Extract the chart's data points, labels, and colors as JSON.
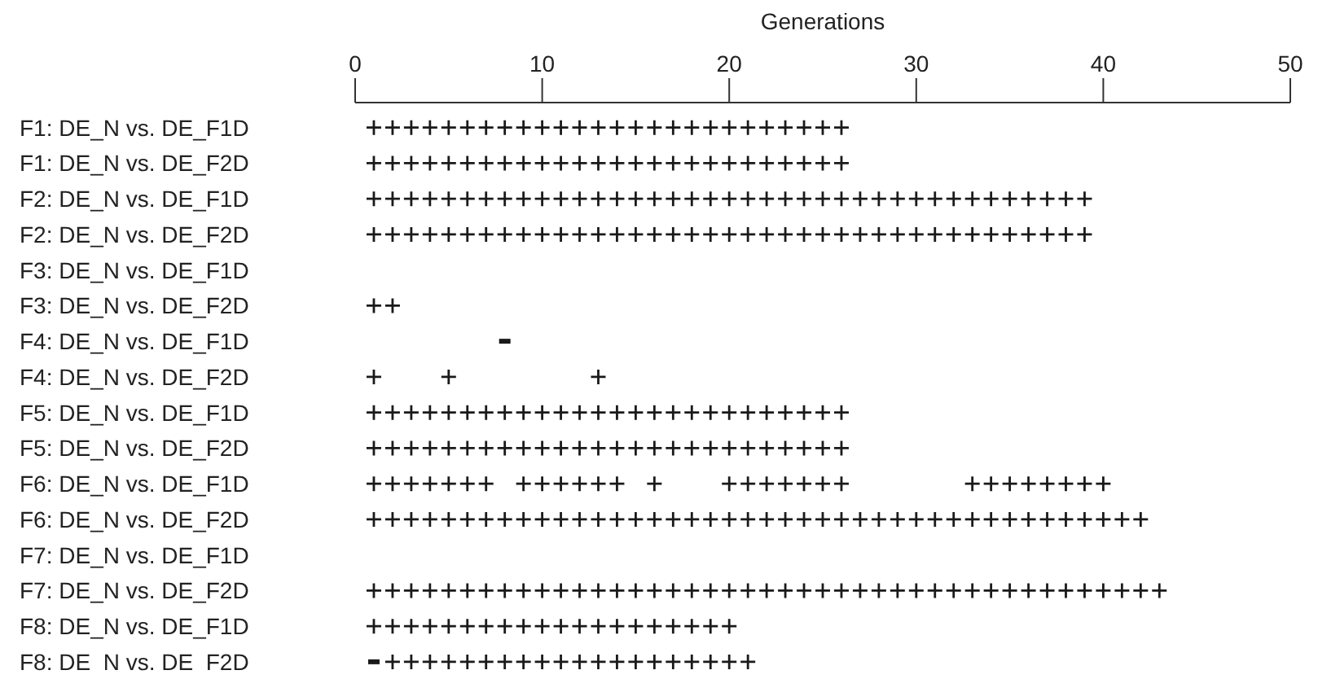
{
  "chart_data": {
    "type": "scatter",
    "orientation": "horizontal",
    "xlabel": "Generations",
    "xlim": [
      0,
      50
    ],
    "xticks": [
      0,
      10,
      20,
      30,
      40,
      50
    ],
    "categories": [
      "F1: DE_N vs. DE_F1D",
      "F1: DE_N vs. DE_F2D",
      "F2: DE_N vs. DE_F1D",
      "F2: DE_N vs. DE_F2D",
      "F3: DE_N vs. DE_F1D",
      "F3: DE_N vs. DE_F2D",
      "F4: DE_N vs. DE_F1D",
      "F4: DE_N vs. DE_F2D",
      "F5: DE_N vs. DE_F1D",
      "F5: DE_N vs. DE_F2D",
      "F6: DE_N vs. DE_F1D",
      "F6: DE_N vs. DE_F2D",
      "F7: DE_N vs. DE_F1D",
      "F7: DE_N vs. DE_F2D",
      "F8: DE_N vs. DE_F1D",
      "F8: DE_N vs. DE_F2D"
    ],
    "series": [
      {
        "marker": "cross",
        "color": "#1a1a1a",
        "values": [
          1,
          2,
          3,
          4,
          5,
          6,
          7,
          8,
          9,
          10,
          11,
          12,
          13,
          14,
          15,
          16,
          17,
          18,
          19,
          20,
          21,
          22,
          23,
          24,
          25,
          26,
          1,
          2,
          3,
          4,
          5,
          6,
          7,
          8,
          9,
          10,
          11,
          12,
          13,
          14,
          15,
          16,
          17,
          18,
          19,
          20,
          21,
          22,
          23,
          24,
          25,
          26,
          1,
          2,
          3,
          4,
          5,
          6,
          7,
          8,
          9,
          10,
          11,
          12,
          13,
          14,
          15,
          16,
          17,
          18,
          19,
          20,
          21,
          22,
          23,
          24,
          25,
          26,
          27,
          28,
          29,
          30,
          31,
          32,
          33,
          34,
          35,
          36,
          37,
          38,
          39,
          1,
          2,
          3,
          4,
          5,
          6,
          7,
          8,
          9,
          10,
          11,
          12,
          13,
          14,
          15,
          16,
          17,
          18,
          19,
          20,
          21,
          22,
          23,
          24,
          25,
          26,
          27,
          28,
          29,
          30,
          31,
          32,
          33,
          34,
          35,
          36,
          37,
          38,
          39,
          1,
          2,
          1,
          5,
          13,
          1,
          2,
          3,
          4,
          5,
          6,
          7,
          8,
          9,
          10,
          11,
          12,
          13,
          14,
          15,
          16,
          17,
          18,
          19,
          20,
          21,
          22,
          23,
          24,
          25,
          26,
          1,
          2,
          3,
          4,
          5,
          6,
          7,
          8,
          9,
          10,
          11,
          12,
          13,
          14,
          15,
          16,
          17,
          18,
          19,
          20,
          21,
          22,
          23,
          24,
          25,
          26,
          1,
          2,
          3,
          4,
          5,
          6,
          7,
          9,
          10,
          11,
          12,
          13,
          14,
          16,
          20,
          21,
          22,
          23,
          24,
          25,
          26,
          33,
          34,
          35,
          36,
          37,
          38,
          39,
          40,
          1,
          2,
          3,
          4,
          5,
          6,
          7,
          8,
          9,
          10,
          11,
          12,
          13,
          14,
          15,
          16,
          17,
          18,
          19,
          20,
          21,
          22,
          23,
          24,
          25,
          26,
          27,
          28,
          29,
          30,
          31,
          32,
          33,
          34,
          35,
          36,
          37,
          38,
          39,
          40,
          41,
          42,
          1,
          2,
          3,
          4,
          5,
          6,
          7,
          8,
          9,
          10,
          11,
          12,
          13,
          14,
          15,
          16,
          17,
          18,
          19,
          20,
          21,
          22,
          23,
          24,
          25,
          26,
          27,
          28,
          29,
          30,
          31,
          32,
          33,
          34,
          35,
          36,
          37,
          38,
          39,
          40,
          41,
          42,
          43,
          1,
          2,
          3,
          4,
          5,
          6,
          7,
          8,
          9,
          10,
          11,
          12,
          13,
          14,
          15,
          16,
          17,
          18,
          19,
          20,
          2,
          3,
          4,
          5,
          6,
          7,
          8,
          9,
          10,
          11,
          12,
          13,
          14,
          15,
          16,
          17,
          18,
          19,
          20,
          21
        ],
        "x": [
          "F1: DE_N vs. DE_F1D",
          "F1: DE_N vs. DE_F1D",
          "F1: DE_N vs. DE_F1D",
          "F1: DE_N vs. DE_F1D",
          "F1: DE_N vs. DE_F1D",
          "F1: DE_N vs. DE_F1D",
          "F1: DE_N vs. DE_F1D",
          "F1: DE_N vs. DE_F1D",
          "F1: DE_N vs. DE_F1D",
          "F1: DE_N vs. DE_F1D",
          "F1: DE_N vs. DE_F1D",
          "F1: DE_N vs. DE_F1D",
          "F1: DE_N vs. DE_F1D",
          "F1: DE_N vs. DE_F1D",
          "F1: DE_N vs. DE_F1D",
          "F1: DE_N vs. DE_F1D",
          "F1: DE_N vs. DE_F1D",
          "F1: DE_N vs. DE_F1D",
          "F1: DE_N vs. DE_F1D",
          "F1: DE_N vs. DE_F1D",
          "F1: DE_N vs. DE_F1D",
          "F1: DE_N vs. DE_F1D",
          "F1: DE_N vs. DE_F1D",
          "F1: DE_N vs. DE_F1D",
          "F1: DE_N vs. DE_F1D",
          "F1: DE_N vs. DE_F1D",
          "F1: DE_N vs. DE_F2D",
          "F1: DE_N vs. DE_F2D",
          "F1: DE_N vs. DE_F2D",
          "F1: DE_N vs. DE_F2D",
          "F1: DE_N vs. DE_F2D",
          "F1: DE_N vs. DE_F2D",
          "F1: DE_N vs. DE_F2D",
          "F1: DE_N vs. DE_F2D",
          "F1: DE_N vs. DE_F2D",
          "F1: DE_N vs. DE_F2D",
          "F1: DE_N vs. DE_F2D",
          "F1: DE_N vs. DE_F2D",
          "F1: DE_N vs. DE_F2D",
          "F1: DE_N vs. DE_F2D",
          "F1: DE_N vs. DE_F2D",
          "F1: DE_N vs. DE_F2D",
          "F1: DE_N vs. DE_F2D",
          "F1: DE_N vs. DE_F2D",
          "F1: DE_N vs. DE_F2D",
          "F1: DE_N vs. DE_F2D",
          "F1: DE_N vs. DE_F2D",
          "F1: DE_N vs. DE_F2D",
          "F1: DE_N vs. DE_F2D",
          "F1: DE_N vs. DE_F2D",
          "F1: DE_N vs. DE_F2D",
          "F1: DE_N vs. DE_F2D",
          "F2: DE_N vs. DE_F1D",
          "F2: DE_N vs. DE_F1D",
          "F2: DE_N vs. DE_F1D",
          "F2: DE_N vs. DE_F1D",
          "F2: DE_N vs. DE_F1D",
          "F2: DE_N vs. DE_F1D",
          "F2: DE_N vs. DE_F1D",
          "F2: DE_N vs. DE_F1D",
          "F2: DE_N vs. DE_F1D",
          "F2: DE_N vs. DE_F1D",
          "F2: DE_N vs. DE_F1D",
          "F2: DE_N vs. DE_F1D",
          "F2: DE_N vs. DE_F1D",
          "F2: DE_N vs. DE_F1D",
          "F2: DE_N vs. DE_F1D",
          "F2: DE_N vs. DE_F1D",
          "F2: DE_N vs. DE_F1D",
          "F2: DE_N vs. DE_F1D",
          "F2: DE_N vs. DE_F1D",
          "F2: DE_N vs. DE_F1D",
          "F2: DE_N vs. DE_F1D",
          "F2: DE_N vs. DE_F1D",
          "F2: DE_N vs. DE_F1D",
          "F2: DE_N vs. DE_F1D",
          "F2: DE_N vs. DE_F1D",
          "F2: DE_N vs. DE_F1D",
          "F2: DE_N vs. DE_F1D",
          "F2: DE_N vs. DE_F1D",
          "F2: DE_N vs. DE_F1D",
          "F2: DE_N vs. DE_F1D",
          "F2: DE_N vs. DE_F1D",
          "F2: DE_N vs. DE_F1D",
          "F2: DE_N vs. DE_F1D",
          "F2: DE_N vs. DE_F1D",
          "F2: DE_N vs. DE_F1D",
          "F2: DE_N vs. DE_F1D",
          "F2: DE_N vs. DE_F1D",
          "F2: DE_N vs. DE_F1D",
          "F2: DE_N vs. DE_F1D",
          "F2: DE_N vs. DE_F2D",
          "F2: DE_N vs. DE_F2D",
          "F2: DE_N vs. DE_F2D",
          "F2: DE_N vs. DE_F2D",
          "F2: DE_N vs. DE_F2D",
          "F2: DE_N vs. DE_F2D",
          "F2: DE_N vs. DE_F2D",
          "F2: DE_N vs. DE_F2D",
          "F2: DE_N vs. DE_F2D",
          "F2: DE_N vs. DE_F2D",
          "F2: DE_N vs. DE_F2D",
          "F2: DE_N vs. DE_F2D",
          "F2: DE_N vs. DE_F2D",
          "F2: DE_N vs. DE_F2D",
          "F2: DE_N vs. DE_F2D",
          "F2: DE_N vs. DE_F2D",
          "F2: DE_N vs. DE_F2D",
          "F2: DE_N vs. DE_F2D",
          "F2: DE_N vs. DE_F2D",
          "F2: DE_N vs. DE_F2D",
          "F2: DE_N vs. DE_F2D",
          "F2: DE_N vs. DE_F2D",
          "F2: DE_N vs. DE_F2D",
          "F2: DE_N vs. DE_F2D",
          "F2: DE_N vs. DE_F2D",
          "F2: DE_N vs. DE_F2D",
          "F2: DE_N vs. DE_F2D",
          "F2: DE_N vs. DE_F2D",
          "F2: DE_N vs. DE_F2D",
          "F2: DE_N vs. DE_F2D",
          "F2: DE_N vs. DE_F2D",
          "F2: DE_N vs. DE_F2D",
          "F2: DE_N vs. DE_F2D",
          "F2: DE_N vs. DE_F2D",
          "F2: DE_N vs. DE_F2D",
          "F2: DE_N vs. DE_F2D",
          "F2: DE_N vs. DE_F2D",
          "F2: DE_N vs. DE_F2D",
          "F2: DE_N vs. DE_F2D",
          "F3: DE_N vs. DE_F2D",
          "F3: DE_N vs. DE_F2D",
          "F4: DE_N vs. DE_F2D",
          "F4: DE_N vs. DE_F2D",
          "F4: DE_N vs. DE_F2D",
          "F5: DE_N vs. DE_F1D",
          "F5: DE_N vs. DE_F1D",
          "F5: DE_N vs. DE_F1D",
          "F5: DE_N vs. DE_F1D",
          "F5: DE_N vs. DE_F1D",
          "F5: DE_N vs. DE_F1D",
          "F5: DE_N vs. DE_F1D",
          "F5: DE_N vs. DE_F1D",
          "F5: DE_N vs. DE_F1D",
          "F5: DE_N vs. DE_F1D",
          "F5: DE_N vs. DE_F1D",
          "F5: DE_N vs. DE_F1D",
          "F5: DE_N vs. DE_F1D",
          "F5: DE_N vs. DE_F1D",
          "F5: DE_N vs. DE_F1D",
          "F5: DE_N vs. DE_F1D",
          "F5: DE_N vs. DE_F1D",
          "F5: DE_N vs. DE_F1D",
          "F5: DE_N vs. DE_F1D",
          "F5: DE_N vs. DE_F1D",
          "F5: DE_N vs. DE_F1D",
          "F5: DE_N vs. DE_F1D",
          "F5: DE_N vs. DE_F1D",
          "F5: DE_N vs. DE_F1D",
          "F5: DE_N vs. DE_F1D",
          "F5: DE_N vs. DE_F1D",
          "F5: DE_N vs. DE_F2D",
          "F5: DE_N vs. DE_F2D",
          "F5: DE_N vs. DE_F2D",
          "F5: DE_N vs. DE_F2D",
          "F5: DE_N vs. DE_F2D",
          "F5: DE_N vs. DE_F2D",
          "F5: DE_N vs. DE_F2D",
          "F5: DE_N vs. DE_F2D",
          "F5: DE_N vs. DE_F2D",
          "F5: DE_N vs. DE_F2D",
          "F5: DE_N vs. DE_F2D",
          "F5: DE_N vs. DE_F2D",
          "F5: DE_N vs. DE_F2D",
          "F5: DE_N vs. DE_F2D",
          "F5: DE_N vs. DE_F2D",
          "F5: DE_N vs. DE_F2D",
          "F5: DE_N vs. DE_F2D",
          "F5: DE_N vs. DE_F2D",
          "F5: DE_N vs. DE_F2D",
          "F5: DE_N vs. DE_F2D",
          "F5: DE_N vs. DE_F2D",
          "F5: DE_N vs. DE_F2D",
          "F5: DE_N vs. DE_F2D",
          "F5: DE_N vs. DE_F2D",
          "F5: DE_N vs. DE_F2D",
          "F5: DE_N vs. DE_F2D",
          "F6: DE_N vs. DE_F1D",
          "F6: DE_N vs. DE_F1D",
          "F6: DE_N vs. DE_F1D",
          "F6: DE_N vs. DE_F1D",
          "F6: DE_N vs. DE_F1D",
          "F6: DE_N vs. DE_F1D",
          "F6: DE_N vs. DE_F1D",
          "F6: DE_N vs. DE_F1D",
          "F6: DE_N vs. DE_F1D",
          "F6: DE_N vs. DE_F1D",
          "F6: DE_N vs. DE_F1D",
          "F6: DE_N vs. DE_F1D",
          "F6: DE_N vs. DE_F1D",
          "F6: DE_N vs. DE_F1D",
          "F6: DE_N vs. DE_F1D",
          "F6: DE_N vs. DE_F1D",
          "F6: DE_N vs. DE_F1D",
          "F6: DE_N vs. DE_F1D",
          "F6: DE_N vs. DE_F1D",
          "F6: DE_N vs. DE_F1D",
          "F6: DE_N vs. DE_F1D",
          "F6: DE_N vs. DE_F1D",
          "F6: DE_N vs. DE_F1D",
          "F6: DE_N vs. DE_F1D",
          "F6: DE_N vs. DE_F1D",
          "F6: DE_N vs. DE_F1D",
          "F6: DE_N vs. DE_F1D",
          "F6: DE_N vs. DE_F1D",
          "F6: DE_N vs. DE_F1D",
          "F6: DE_N vs. DE_F2D",
          "F6: DE_N vs. DE_F2D",
          "F6: DE_N vs. DE_F2D",
          "F6: DE_N vs. DE_F2D",
          "F6: DE_N vs. DE_F2D",
          "F6: DE_N vs. DE_F2D",
          "F6: DE_N vs. DE_F2D",
          "F6: DE_N vs. DE_F2D",
          "F6: DE_N vs. DE_F2D",
          "F6: DE_N vs. DE_F2D",
          "F6: DE_N vs. DE_F2D",
          "F6: DE_N vs. DE_F2D",
          "F6: DE_N vs. DE_F2D",
          "F6: DE_N vs. DE_F2D",
          "F6: DE_N vs. DE_F2D",
          "F6: DE_N vs. DE_F2D",
          "F6: DE_N vs. DE_F2D",
          "F6: DE_N vs. DE_F2D",
          "F6: DE_N vs. DE_F2D",
          "F6: DE_N vs. DE_F2D",
          "F6: DE_N vs. DE_F2D",
          "F6: DE_N vs. DE_F2D",
          "F6: DE_N vs. DE_F2D",
          "F6: DE_N vs. DE_F2D",
          "F6: DE_N vs. DE_F2D",
          "F6: DE_N vs. DE_F2D",
          "F6: DE_N vs. DE_F2D",
          "F6: DE_N vs. DE_F2D",
          "F6: DE_N vs. DE_F2D",
          "F6: DE_N vs. DE_F2D",
          "F6: DE_N vs. DE_F2D",
          "F6: DE_N vs. DE_F2D",
          "F6: DE_N vs. DE_F2D",
          "F6: DE_N vs. DE_F2D",
          "F6: DE_N vs. DE_F2D",
          "F6: DE_N vs. DE_F2D",
          "F6: DE_N vs. DE_F2D",
          "F6: DE_N vs. DE_F2D",
          "F6: DE_N vs. DE_F2D",
          "F6: DE_N vs. DE_F2D",
          "F6: DE_N vs. DE_F2D",
          "F6: DE_N vs. DE_F2D",
          "F7: DE_N vs. DE_F2D",
          "F7: DE_N vs. DE_F2D",
          "F7: DE_N vs. DE_F2D",
          "F7: DE_N vs. DE_F2D",
          "F7: DE_N vs. DE_F2D",
          "F7: DE_N vs. DE_F2D",
          "F7: DE_N vs. DE_F2D",
          "F7: DE_N vs. DE_F2D",
          "F7: DE_N vs. DE_F2D",
          "F7: DE_N vs. DE_F2D",
          "F7: DE_N vs. DE_F2D",
          "F7: DE_N vs. DE_F2D",
          "F7: DE_N vs. DE_F2D",
          "F7: DE_N vs. DE_F2D",
          "F7: DE_N vs. DE_F2D",
          "F7: DE_N vs. DE_F2D",
          "F7: DE_N vs. DE_F2D",
          "F7: DE_N vs. DE_F2D",
          "F7: DE_N vs. DE_F2D",
          "F7: DE_N vs. DE_F2D",
          "F7: DE_N vs. DE_F2D",
          "F7: DE_N vs. DE_F2D",
          "F7: DE_N vs. DE_F2D",
          "F7: DE_N vs. DE_F2D",
          "F7: DE_N vs. DE_F2D",
          "F7: DE_N vs. DE_F2D",
          "F7: DE_N vs. DE_F2D",
          "F7: DE_N vs. DE_F2D",
          "F7: DE_N vs. DE_F2D",
          "F7: DE_N vs. DE_F2D",
          "F7: DE_N vs. DE_F2D",
          "F7: DE_N vs. DE_F2D",
          "F7: DE_N vs. DE_F2D",
          "F7: DE_N vs. DE_F2D",
          "F7: DE_N vs. DE_F2D",
          "F7: DE_N vs. DE_F2D",
          "F7: DE_N vs. DE_F2D",
          "F7: DE_N vs. DE_F2D",
          "F7: DE_N vs. DE_F2D",
          "F7: DE_N vs. DE_F2D",
          "F7: DE_N vs. DE_F2D",
          "F7: DE_N vs. DE_F2D",
          "F7: DE_N vs. DE_F2D",
          "F8: DE_N vs. DE_F1D",
          "F8: DE_N vs. DE_F1D",
          "F8: DE_N vs. DE_F1D",
          "F8: DE_N vs. DE_F1D",
          "F8: DE_N vs. DE_F1D",
          "F8: DE_N vs. DE_F1D",
          "F8: DE_N vs. DE_F1D",
          "F8: DE_N vs. DE_F1D",
          "F8: DE_N vs. DE_F1D",
          "F8: DE_N vs. DE_F1D",
          "F8: DE_N vs. DE_F1D",
          "F8: DE_N vs. DE_F1D",
          "F8: DE_N vs. DE_F1D",
          "F8: DE_N vs. DE_F1D",
          "F8: DE_N vs. DE_F1D",
          "F8: DE_N vs. DE_F1D",
          "F8: DE_N vs. DE_F1D",
          "F8: DE_N vs. DE_F1D",
          "F8: DE_N vs. DE_F1D",
          "F8: DE_N vs. DE_F1D",
          "F8: DE_N vs. DE_F2D",
          "F8: DE_N vs. DE_F2D",
          "F8: DE_N vs. DE_F2D",
          "F8: DE_N vs. DE_F2D",
          "F8: DE_N vs. DE_F2D",
          "F8: DE_N vs. DE_F2D",
          "F8: DE_N vs. DE_F2D",
          "F8: DE_N vs. DE_F2D",
          "F8: DE_N vs. DE_F2D",
          "F8: DE_N vs. DE_F2D",
          "F8: DE_N vs. DE_F2D",
          "F8: DE_N vs. DE_F2D",
          "F8: DE_N vs. DE_F2D",
          "F8: DE_N vs. DE_F2D",
          "F8: DE_N vs. DE_F2D",
          "F8: DE_N vs. DE_F2D",
          "F8: DE_N vs. DE_F2D",
          "F8: DE_N vs. DE_F2D",
          "F8: DE_N vs. DE_F2D",
          "F8: DE_N vs. DE_F2D"
        ]
      },
      {
        "color": "#1a1a1a",
        "values": [
          8,
          1
        ],
        "x": [
          "F4: DE_N vs. DE_F1D",
          "F8: DE_N vs. DE_F2D"
        ]
      }
    ]
  }
}
